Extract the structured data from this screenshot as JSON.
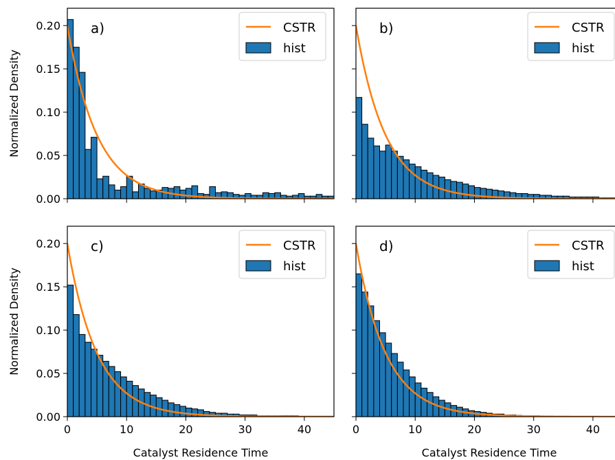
{
  "figure": {
    "colors": {
      "hist_face": "#1f77b4",
      "hist_edge": "#000000",
      "cstr_line": "#ff7f0e"
    }
  },
  "chart_data": [
    {
      "type": "bar",
      "panel_label": "a)",
      "xlabel": "",
      "ylabel": "Normalized Density",
      "xlim": [
        0,
        45
      ],
      "ylim": [
        0,
        0.22
      ],
      "xticks": [
        0,
        10,
        20,
        30,
        40
      ],
      "yticks": [
        "0.00",
        "0.05",
        "0.10",
        "0.15",
        "0.20"
      ],
      "legend": {
        "placement": "top-right",
        "entries": [
          "CSTR",
          "hist"
        ]
      },
      "bin_width": 1,
      "bin_start": 0,
      "hist_values": [
        0.207,
        0.175,
        0.146,
        0.057,
        0.071,
        0.023,
        0.026,
        0.016,
        0.01,
        0.014,
        0.026,
        0.008,
        0.017,
        0.012,
        0.009,
        0.01,
        0.013,
        0.012,
        0.014,
        0.01,
        0.012,
        0.015,
        0.006,
        0.005,
        0.014,
        0.007,
        0.008,
        0.007,
        0.005,
        0.004,
        0.006,
        0.004,
        0.004,
        0.007,
        0.006,
        0.007,
        0.004,
        0.003,
        0.004,
        0.006,
        0.003,
        0.003,
        0.005,
        0.003,
        0.003
      ],
      "series": [
        {
          "name": "CSTR",
          "kind": "line",
          "function": "0.2*exp(-0.2*x)"
        },
        {
          "name": "hist",
          "kind": "histogram"
        }
      ]
    },
    {
      "type": "bar",
      "panel_label": "b)",
      "xlabel": "",
      "ylabel": "",
      "xlim": [
        0,
        45
      ],
      "ylim": [
        0,
        0.22
      ],
      "xticks": [
        0,
        10,
        20,
        30,
        40
      ],
      "yticks": [
        "",
        "",
        "",
        "",
        ""
      ],
      "legend": {
        "placement": "top-right",
        "entries": [
          "CSTR",
          "hist"
        ]
      },
      "bin_width": 1,
      "bin_start": 0,
      "hist_values": [
        0.117,
        0.086,
        0.07,
        0.061,
        0.055,
        0.062,
        0.055,
        0.049,
        0.045,
        0.04,
        0.037,
        0.033,
        0.03,
        0.027,
        0.025,
        0.022,
        0.02,
        0.019,
        0.017,
        0.015,
        0.013,
        0.012,
        0.011,
        0.01,
        0.009,
        0.008,
        0.007,
        0.006,
        0.006,
        0.005,
        0.005,
        0.004,
        0.004,
        0.003,
        0.003,
        0.003,
        0.002,
        0.002,
        0.002,
        0.002,
        0.002,
        0.001,
        0.001,
        0.001,
        0.001
      ],
      "series": [
        {
          "name": "CSTR",
          "kind": "line",
          "function": "0.2*exp(-0.2*x)"
        },
        {
          "name": "hist",
          "kind": "histogram"
        }
      ]
    },
    {
      "type": "bar",
      "panel_label": "c)",
      "xlabel": "Catalyst Residence Time",
      "ylabel": "Normalized Density",
      "xlim": [
        0,
        45
      ],
      "ylim": [
        0,
        0.22
      ],
      "xticks": [
        0,
        10,
        20,
        30,
        40
      ],
      "yticks": [
        "0.00",
        "0.05",
        "0.10",
        "0.15",
        "0.20"
      ],
      "legend": {
        "placement": "top-right",
        "entries": [
          "CSTR",
          "hist"
        ]
      },
      "bin_width": 1,
      "bin_start": 0,
      "hist_values": [
        0.152,
        0.118,
        0.095,
        0.086,
        0.078,
        0.071,
        0.064,
        0.058,
        0.052,
        0.046,
        0.041,
        0.036,
        0.032,
        0.028,
        0.025,
        0.022,
        0.019,
        0.016,
        0.014,
        0.012,
        0.01,
        0.009,
        0.008,
        0.006,
        0.005,
        0.004,
        0.004,
        0.003,
        0.003,
        0.002,
        0.002,
        0.002,
        0.001,
        0.001,
        0.001,
        0.001,
        0.001,
        0.001,
        0.001,
        0.0005,
        0.0005,
        0.0005,
        0.0005,
        0.0005,
        0.0005
      ],
      "series": [
        {
          "name": "CSTR",
          "kind": "line",
          "function": "0.2*exp(-0.2*x)"
        },
        {
          "name": "hist",
          "kind": "histogram"
        }
      ]
    },
    {
      "type": "bar",
      "panel_label": "d)",
      "xlabel": "Catalyst Residence Time",
      "ylabel": "",
      "xlim": [
        0,
        45
      ],
      "ylim": [
        0,
        0.22
      ],
      "xticks": [
        0,
        10,
        20,
        30,
        40
      ],
      "yticks": [
        "",
        "",
        "",
        "",
        ""
      ],
      "legend": {
        "placement": "top-right",
        "entries": [
          "CSTR",
          "hist"
        ]
      },
      "bin_width": 1,
      "bin_start": 0,
      "hist_values": [
        0.165,
        0.144,
        0.128,
        0.111,
        0.097,
        0.085,
        0.073,
        0.063,
        0.054,
        0.046,
        0.039,
        0.033,
        0.028,
        0.023,
        0.019,
        0.016,
        0.013,
        0.011,
        0.009,
        0.007,
        0.006,
        0.005,
        0.004,
        0.003,
        0.003,
        0.002,
        0.002,
        0.0015,
        0.001,
        0.001,
        0.001,
        0.0008,
        0.0006,
        0.0005,
        0.0004,
        0.0003,
        0.0003,
        0.0002,
        0.0002,
        0.0002,
        0.0002,
        0.0001,
        0.0001,
        0.0001,
        0.0001
      ],
      "series": [
        {
          "name": "CSTR",
          "kind": "line",
          "function": "0.2*exp(-0.2*x)"
        },
        {
          "name": "hist",
          "kind": "histogram"
        }
      ]
    }
  ]
}
